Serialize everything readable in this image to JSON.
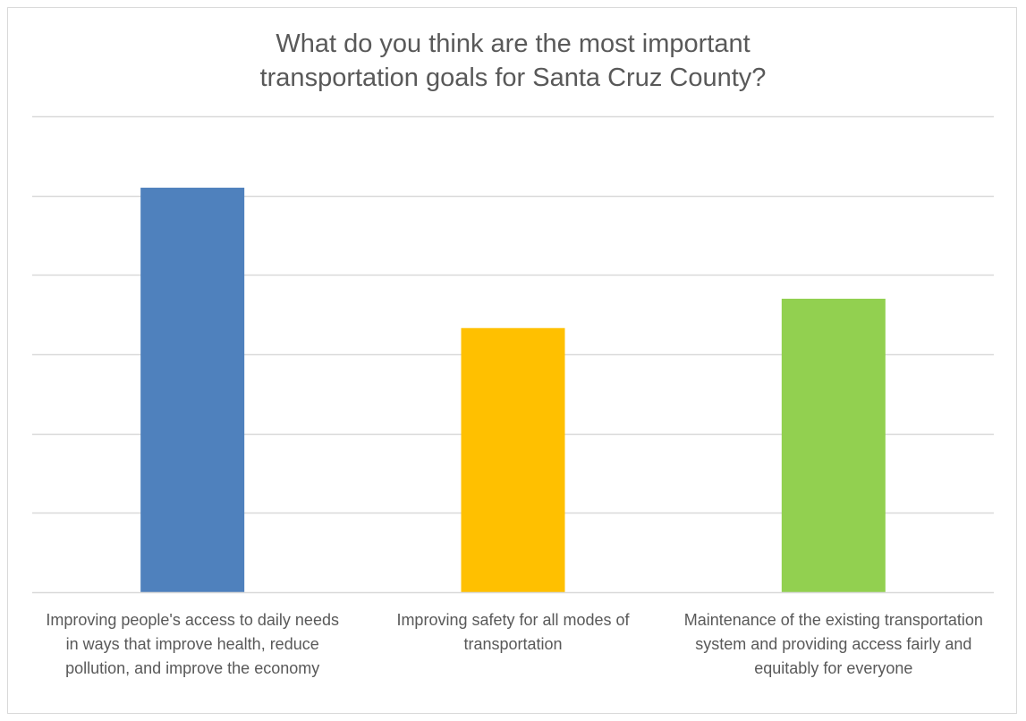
{
  "chart_data": {
    "type": "bar",
    "title": "What do you think are the most important transportation goals for Santa Cruz County?",
    "title_lines": [
      "What do you think are the most important",
      "transportation goals for Santa Cruz County?"
    ],
    "categories": [
      "Improving people's access to daily needs in ways that improve health, reduce pollution, and improve the economy",
      "Improving safety for all modes of transportation",
      "Maintenance of the existing transportation system and providing access fairly and equitably for everyone"
    ],
    "values": [
      5.1,
      3.33,
      3.7
    ],
    "colors": [
      "#4f81bd",
      "#ffc000",
      "#92d050"
    ],
    "ylim": [
      0,
      6
    ],
    "y_gridline_step": 1,
    "axis_tick_labels_shown": false,
    "grid": true,
    "legend": "none",
    "xlabel": "",
    "ylabel": ""
  }
}
